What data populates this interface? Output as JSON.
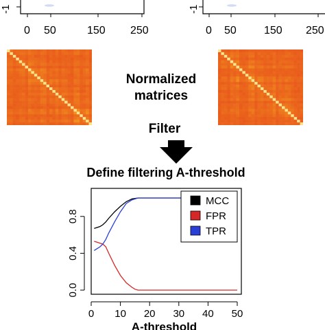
{
  "top_panels": {
    "left": {
      "y_tick": "-1",
      "x_ticks": [
        "0",
        "50",
        "150",
        "250"
      ]
    },
    "right": {
      "y_tick": "-1",
      "x_ticks": [
        "0",
        "50",
        "150",
        "250"
      ]
    }
  },
  "normalized_label": {
    "line1": "Normalized",
    "line2": "matrices"
  },
  "filter_label": "Filter",
  "define_label": "Define filtering A-threshold",
  "heatmap_colors": {
    "low": "#e8541c",
    "mid": "#f39a1e",
    "diag": "#fff0a0"
  },
  "chart_data": {
    "type": "line",
    "xlabel": "A-threshold",
    "ylabel": "",
    "xlim": [
      0,
      50
    ],
    "ylim": [
      0,
      1
    ],
    "x_ticks": [
      0,
      10,
      20,
      30,
      40,
      50
    ],
    "y_ticks": [
      "0.0",
      "0.4",
      "0.8"
    ],
    "legend_position": "top-right",
    "series": [
      {
        "name": "MCC",
        "color": "#000000",
        "x": [
          1,
          3,
          4,
          5,
          6,
          8,
          10,
          12,
          14,
          16,
          18,
          20,
          25,
          30,
          40,
          50
        ],
        "values": [
          0.67,
          0.69,
          0.71,
          0.74,
          0.78,
          0.85,
          0.91,
          0.96,
          0.99,
          1.0,
          1.0,
          1.0,
          1.0,
          1.0,
          1.0,
          1.0
        ]
      },
      {
        "name": "FPR",
        "color": "#d62728",
        "x": [
          1,
          2,
          3,
          4,
          5,
          6,
          8,
          10,
          12,
          14,
          15,
          16,
          18,
          20,
          30,
          40,
          50
        ],
        "values": [
          0.53,
          0.52,
          0.51,
          0.5,
          0.47,
          0.4,
          0.27,
          0.16,
          0.08,
          0.03,
          0.01,
          0.0,
          0.0,
          0.0,
          0.0,
          0.0,
          0.0
        ]
      },
      {
        "name": "TPR",
        "color": "#2a3fd6",
        "x": [
          1,
          2,
          3,
          4,
          5,
          6,
          8,
          10,
          12,
          14,
          16,
          18,
          20,
          30,
          40,
          50
        ],
        "values": [
          0.43,
          0.45,
          0.47,
          0.5,
          0.55,
          0.62,
          0.74,
          0.85,
          0.94,
          0.98,
          1.0,
          1.0,
          1.0,
          1.0,
          1.0,
          1.0
        ]
      }
    ]
  }
}
